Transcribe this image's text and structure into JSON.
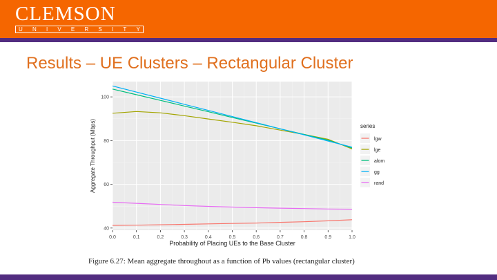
{
  "header": {
    "logo_word": "CLEMSON",
    "logo_sub": "UNIVERSITY",
    "colors": {
      "orange": "#f56600",
      "purple": "#522d80"
    }
  },
  "slide": {
    "title": "Results – UE Clusters – Rectangular Cluster",
    "caption": "Figure 6.27: Mean aggregate throughout as a function of Pb values (rectangular cluster)"
  },
  "chart_data": {
    "type": "line",
    "title": "",
    "xlabel": "Probability of Placing UEs to the Base Cluster",
    "ylabel": "Aggregate Throughput (Mbps)",
    "xlim": [
      0,
      1
    ],
    "ylim": [
      39,
      107
    ],
    "x": [
      0.0,
      0.1,
      0.2,
      0.3,
      0.4,
      0.5,
      0.6,
      0.7,
      0.8,
      0.9,
      1.0
    ],
    "x_tick_labels": [
      "0.0",
      "0.1",
      "0.2",
      "0.3",
      "0.4",
      "0.5",
      "0.6",
      "0.7",
      "0.8",
      "0.9",
      "1.0"
    ],
    "y_ticks": [
      40,
      60,
      80,
      100
    ],
    "y_tick_labels": [
      "40",
      "60",
      "80",
      "100"
    ],
    "grid": true,
    "legend": {
      "title": "series",
      "placement": "right"
    },
    "series": [
      {
        "name": "lgw",
        "color": "#f8766d",
        "values": [
          41.2,
          41.3,
          41.5,
          41.7,
          41.9,
          42.1,
          42.3,
          42.6,
          42.9,
          43.3,
          43.8
        ]
      },
      {
        "name": "lge",
        "color": "#a3a500",
        "values": [
          92.5,
          93.3,
          92.7,
          91.4,
          89.9,
          88.4,
          86.8,
          84.8,
          82.8,
          80.6,
          76.2
        ]
      },
      {
        "name": "alom",
        "color": "#00bf7d",
        "values": [
          103.6,
          101.0,
          98.4,
          95.8,
          93.2,
          90.6,
          88.0,
          85.4,
          82.8,
          80.2,
          76.6
        ]
      },
      {
        "name": "gg",
        "color": "#00b0f6",
        "values": [
          105.0,
          102.2,
          99.4,
          96.6,
          93.8,
          91.0,
          88.2,
          85.4,
          82.6,
          79.8,
          77.0
        ]
      },
      {
        "name": "rand",
        "color": "#e76bf3",
        "values": [
          51.8,
          51.3,
          50.8,
          50.3,
          49.9,
          49.6,
          49.3,
          49.1,
          48.9,
          48.7,
          48.6
        ]
      }
    ]
  }
}
